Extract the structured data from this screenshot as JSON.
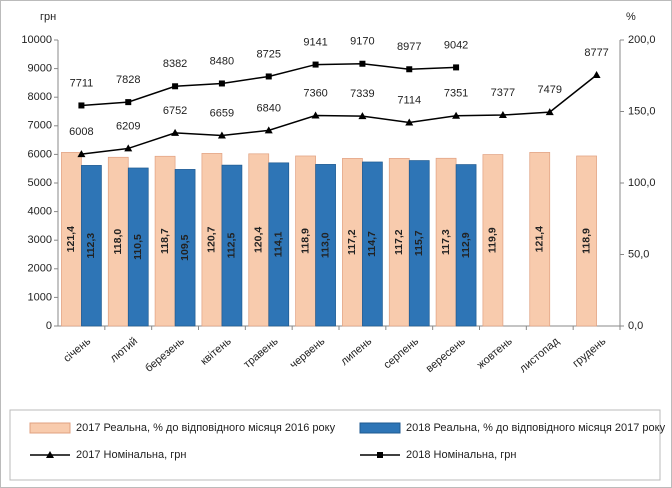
{
  "chart_data": {
    "type": "bar_line",
    "y_unit": "грн",
    "y2_unit": "%",
    "categories": [
      "січень",
      "лютий",
      "березень",
      "квітень",
      "травень",
      "червень",
      "липень",
      "серпень",
      "вересень",
      "жовтень",
      "листопад",
      "грудень"
    ],
    "ylim": [
      0,
      10000
    ],
    "yticks": [
      0,
      1000,
      2000,
      3000,
      4000,
      5000,
      6000,
      7000,
      8000,
      9000,
      10000
    ],
    "y2lim": [
      0,
      200
    ],
    "y2ticks": [
      {
        "value": 0,
        "label": "0,0"
      },
      {
        "value": 50,
        "label": "50,0"
      },
      {
        "value": 100,
        "label": "100,0"
      },
      {
        "value": 150,
        "label": "150,0"
      },
      {
        "value": 200,
        "label": "200,0"
      }
    ],
    "series": [
      {
        "name": "2017 Реальна, % до відповідного місяця 2016 року",
        "kind": "bar",
        "axis": "y2",
        "color": "#f8cbad",
        "values": [
          121.4,
          118.0,
          118.7,
          120.7,
          120.4,
          118.9,
          117.2,
          117.2,
          117.3,
          119.9,
          121.4,
          118.9
        ],
        "value_labels": [
          "121,4",
          "118,0",
          "118,7",
          "120,7",
          "120,4",
          "118,9",
          "117,2",
          "117,2",
          "117,3",
          "119,9",
          "121,4",
          "118,9"
        ]
      },
      {
        "name": "2018 Реальна, % до відповідного місяця 2017 року",
        "kind": "bar",
        "axis": "y2",
        "color": "#2e75b6",
        "values": [
          112.3,
          110.5,
          109.5,
          112.5,
          114.1,
          113.0,
          114.7,
          115.7,
          112.9,
          null,
          null,
          null
        ],
        "value_labels": [
          "112,3",
          "110,5",
          "109,5",
          "112,5",
          "114,1",
          "113,0",
          "114,7",
          "115,7",
          "112,9",
          null,
          null,
          null
        ]
      },
      {
        "name": "2017 Номінальна, грн",
        "kind": "line",
        "marker": "triangle",
        "color": "#000000",
        "values": [
          6008,
          6209,
          6752,
          6659,
          6840,
          7360,
          7339,
          7114,
          7351,
          7377,
          7479,
          8777
        ]
      },
      {
        "name": "2018 Номінальна, грн",
        "kind": "line",
        "marker": "square",
        "color": "#000000",
        "values": [
          7711,
          7828,
          8382,
          8480,
          8725,
          9141,
          9170,
          8977,
          9042,
          null,
          null,
          null
        ]
      }
    ]
  }
}
